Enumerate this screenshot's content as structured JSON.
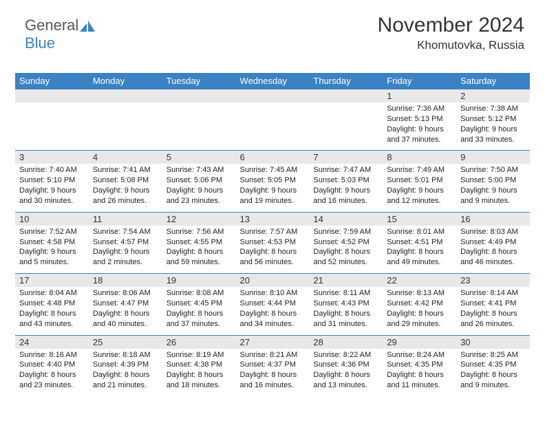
{
  "brand": {
    "part1": "General",
    "part2": "Blue"
  },
  "title": "November 2024",
  "location": "Khomutovka, Russia",
  "colors": {
    "header_bg": "#3b82c4",
    "row_bg": "#e8e8e8",
    "text": "#333333"
  },
  "weekdays": [
    "Sunday",
    "Monday",
    "Tuesday",
    "Wednesday",
    "Thursday",
    "Friday",
    "Saturday"
  ],
  "weeks": [
    [
      {
        "blank": true
      },
      {
        "blank": true
      },
      {
        "blank": true
      },
      {
        "blank": true
      },
      {
        "blank": true
      },
      {
        "day": "1",
        "sunrise": "Sunrise: 7:36 AM",
        "sunset": "Sunset: 5:13 PM",
        "day1": "Daylight: 9 hours",
        "day2": "and 37 minutes."
      },
      {
        "day": "2",
        "sunrise": "Sunrise: 7:38 AM",
        "sunset": "Sunset: 5:12 PM",
        "day1": "Daylight: 9 hours",
        "day2": "and 33 minutes."
      }
    ],
    [
      {
        "day": "3",
        "sunrise": "Sunrise: 7:40 AM",
        "sunset": "Sunset: 5:10 PM",
        "day1": "Daylight: 9 hours",
        "day2": "and 30 minutes."
      },
      {
        "day": "4",
        "sunrise": "Sunrise: 7:41 AM",
        "sunset": "Sunset: 5:08 PM",
        "day1": "Daylight: 9 hours",
        "day2": "and 26 minutes."
      },
      {
        "day": "5",
        "sunrise": "Sunrise: 7:43 AM",
        "sunset": "Sunset: 5:06 PM",
        "day1": "Daylight: 9 hours",
        "day2": "and 23 minutes."
      },
      {
        "day": "6",
        "sunrise": "Sunrise: 7:45 AM",
        "sunset": "Sunset: 5:05 PM",
        "day1": "Daylight: 9 hours",
        "day2": "and 19 minutes."
      },
      {
        "day": "7",
        "sunrise": "Sunrise: 7:47 AM",
        "sunset": "Sunset: 5:03 PM",
        "day1": "Daylight: 9 hours",
        "day2": "and 16 minutes."
      },
      {
        "day": "8",
        "sunrise": "Sunrise: 7:49 AM",
        "sunset": "Sunset: 5:01 PM",
        "day1": "Daylight: 9 hours",
        "day2": "and 12 minutes."
      },
      {
        "day": "9",
        "sunrise": "Sunrise: 7:50 AM",
        "sunset": "Sunset: 5:00 PM",
        "day1": "Daylight: 9 hours",
        "day2": "and 9 minutes."
      }
    ],
    [
      {
        "day": "10",
        "sunrise": "Sunrise: 7:52 AM",
        "sunset": "Sunset: 4:58 PM",
        "day1": "Daylight: 9 hours",
        "day2": "and 5 minutes."
      },
      {
        "day": "11",
        "sunrise": "Sunrise: 7:54 AM",
        "sunset": "Sunset: 4:57 PM",
        "day1": "Daylight: 9 hours",
        "day2": "and 2 minutes."
      },
      {
        "day": "12",
        "sunrise": "Sunrise: 7:56 AM",
        "sunset": "Sunset: 4:55 PM",
        "day1": "Daylight: 8 hours",
        "day2": "and 59 minutes."
      },
      {
        "day": "13",
        "sunrise": "Sunrise: 7:57 AM",
        "sunset": "Sunset: 4:53 PM",
        "day1": "Daylight: 8 hours",
        "day2": "and 56 minutes."
      },
      {
        "day": "14",
        "sunrise": "Sunrise: 7:59 AM",
        "sunset": "Sunset: 4:52 PM",
        "day1": "Daylight: 8 hours",
        "day2": "and 52 minutes."
      },
      {
        "day": "15",
        "sunrise": "Sunrise: 8:01 AM",
        "sunset": "Sunset: 4:51 PM",
        "day1": "Daylight: 8 hours",
        "day2": "and 49 minutes."
      },
      {
        "day": "16",
        "sunrise": "Sunrise: 8:03 AM",
        "sunset": "Sunset: 4:49 PM",
        "day1": "Daylight: 8 hours",
        "day2": "and 46 minutes."
      }
    ],
    [
      {
        "day": "17",
        "sunrise": "Sunrise: 8:04 AM",
        "sunset": "Sunset: 4:48 PM",
        "day1": "Daylight: 8 hours",
        "day2": "and 43 minutes."
      },
      {
        "day": "18",
        "sunrise": "Sunrise: 8:06 AM",
        "sunset": "Sunset: 4:47 PM",
        "day1": "Daylight: 8 hours",
        "day2": "and 40 minutes."
      },
      {
        "day": "19",
        "sunrise": "Sunrise: 8:08 AM",
        "sunset": "Sunset: 4:45 PM",
        "day1": "Daylight: 8 hours",
        "day2": "and 37 minutes."
      },
      {
        "day": "20",
        "sunrise": "Sunrise: 8:10 AM",
        "sunset": "Sunset: 4:44 PM",
        "day1": "Daylight: 8 hours",
        "day2": "and 34 minutes."
      },
      {
        "day": "21",
        "sunrise": "Sunrise: 8:11 AM",
        "sunset": "Sunset: 4:43 PM",
        "day1": "Daylight: 8 hours",
        "day2": "and 31 minutes."
      },
      {
        "day": "22",
        "sunrise": "Sunrise: 8:13 AM",
        "sunset": "Sunset: 4:42 PM",
        "day1": "Daylight: 8 hours",
        "day2": "and 29 minutes."
      },
      {
        "day": "23",
        "sunrise": "Sunrise: 8:14 AM",
        "sunset": "Sunset: 4:41 PM",
        "day1": "Daylight: 8 hours",
        "day2": "and 26 minutes."
      }
    ],
    [
      {
        "day": "24",
        "sunrise": "Sunrise: 8:16 AM",
        "sunset": "Sunset: 4:40 PM",
        "day1": "Daylight: 8 hours",
        "day2": "and 23 minutes."
      },
      {
        "day": "25",
        "sunrise": "Sunrise: 8:18 AM",
        "sunset": "Sunset: 4:39 PM",
        "day1": "Daylight: 8 hours",
        "day2": "and 21 minutes."
      },
      {
        "day": "26",
        "sunrise": "Sunrise: 8:19 AM",
        "sunset": "Sunset: 4:38 PM",
        "day1": "Daylight: 8 hours",
        "day2": "and 18 minutes."
      },
      {
        "day": "27",
        "sunrise": "Sunrise: 8:21 AM",
        "sunset": "Sunset: 4:37 PM",
        "day1": "Daylight: 8 hours",
        "day2": "and 16 minutes."
      },
      {
        "day": "28",
        "sunrise": "Sunrise: 8:22 AM",
        "sunset": "Sunset: 4:36 PM",
        "day1": "Daylight: 8 hours",
        "day2": "and 13 minutes."
      },
      {
        "day": "29",
        "sunrise": "Sunrise: 8:24 AM",
        "sunset": "Sunset: 4:35 PM",
        "day1": "Daylight: 8 hours",
        "day2": "and 11 minutes."
      },
      {
        "day": "30",
        "sunrise": "Sunrise: 8:25 AM",
        "sunset": "Sunset: 4:35 PM",
        "day1": "Daylight: 8 hours",
        "day2": "and 9 minutes."
      }
    ]
  ]
}
